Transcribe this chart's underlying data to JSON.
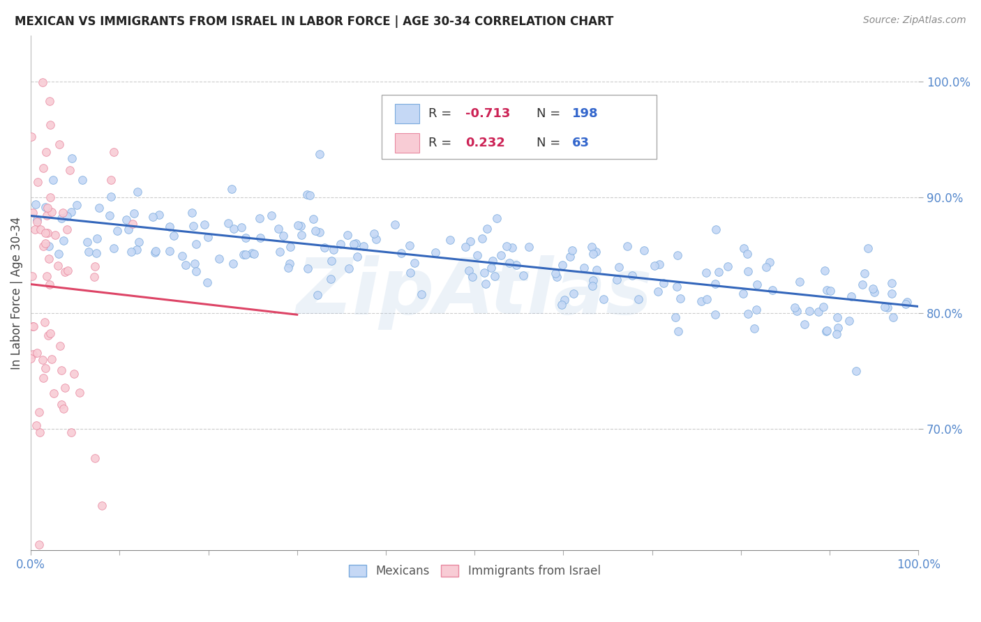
{
  "title": "MEXICAN VS IMMIGRANTS FROM ISRAEL IN LABOR FORCE | AGE 30-34 CORRELATION CHART",
  "source": "Source: ZipAtlas.com",
  "ylabel": "In Labor Force | Age 30-34",
  "y_ticks": [
    0.7,
    0.8,
    0.9,
    1.0
  ],
  "y_tick_labels": [
    "70.0%",
    "80.0%",
    "90.0%",
    "100.0%"
  ],
  "xlim": [
    0.0,
    1.0
  ],
  "ylim": [
    0.595,
    1.04
  ],
  "blue_color": "#c5d8f5",
  "blue_edge_color": "#7aaadd",
  "pink_color": "#f8ccd5",
  "pink_edge_color": "#e888a0",
  "blue_line_color": "#3366bb",
  "pink_line_color": "#dd4466",
  "r_blue": -0.713,
  "n_blue": 198,
  "r_pink": 0.232,
  "n_pink": 63,
  "legend_label_blue": "Mexicans",
  "legend_label_pink": "Immigrants from Israel",
  "watermark": "ZipAtlas",
  "marker_size": 70,
  "blue_seed": 42,
  "pink_seed": 7,
  "background_color": "#ffffff",
  "grid_color": "#cccccc",
  "title_color": "#222222",
  "source_color": "#888888",
  "axis_label_color": "#444444",
  "tick_label_color": "#5588cc",
  "legend_r_color": "#cc2255",
  "legend_n_color": "#3366cc"
}
